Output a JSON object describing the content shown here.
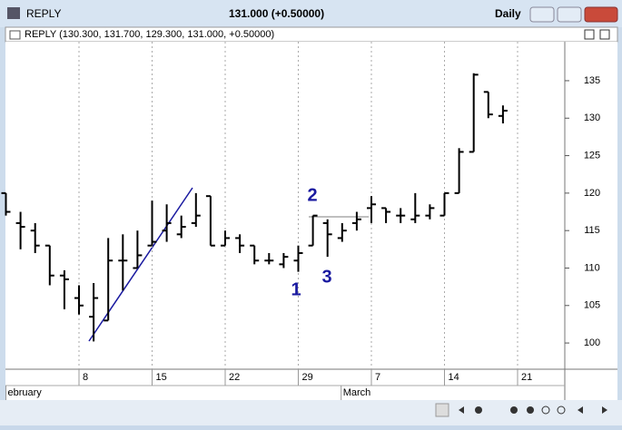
{
  "window": {
    "title": "REPLY",
    "quote": "131.000 (+0.50000)",
    "period": "Daily",
    "subtitle": "REPLY (130.300, 131.700, 129.300, 131.000, +0.50000)"
  },
  "chart_data": {
    "type": "ohlc",
    "categories": [
      null,
      null,
      null,
      null,
      null,
      "8",
      null,
      null,
      null,
      null,
      "15",
      null,
      null,
      null,
      null,
      "22",
      null,
      null,
      null,
      null,
      "29",
      null,
      null,
      null,
      null,
      "7",
      null,
      null,
      null,
      null,
      "14",
      null,
      null,
      null,
      null,
      "21"
    ],
    "months": [
      {
        "index": 0,
        "label": "ebruary"
      },
      {
        "index": 22,
        "label": "March"
      }
    ],
    "open": [
      120,
      116,
      115,
      113,
      109,
      106,
      103.5,
      103,
      111,
      110,
      113,
      115,
      114.5,
      116,
      119.6,
      113,
      114,
      113,
      111,
      110.5,
      111,
      113,
      116,
      114,
      116,
      118,
      118,
      117,
      116.5,
      117,
      117,
      120,
      125.5,
      133.5,
      130.3,
      null
    ],
    "high": [
      120,
      117.5,
      116,
      113,
      109.7,
      107.7,
      108,
      114,
      114.5,
      115,
      119,
      118.5,
      117,
      120,
      119.6,
      115,
      114.5,
      113,
      112,
      112,
      113,
      117,
      116.5,
      116,
      117.5,
      119.6,
      118,
      118,
      120,
      118.5,
      120,
      126,
      136,
      133.5,
      131.7,
      null
    ],
    "low": [
      117,
      112.5,
      112,
      107.7,
      104.5,
      103.8,
      100.2,
      103,
      107,
      110,
      113,
      113.5,
      114,
      115.5,
      113,
      113,
      112,
      110.5,
      110.5,
      110,
      109.5,
      113,
      111.5,
      113.5,
      115,
      116,
      116,
      116,
      116,
      116.5,
      117,
      120,
      125.5,
      130,
      129.3,
      null
    ],
    "close": [
      117.5,
      115.5,
      113,
      109,
      108.5,
      105,
      106,
      111,
      111,
      111.7,
      113.5,
      116,
      115.5,
      117,
      113,
      114,
      113,
      111,
      111,
      111.5,
      112,
      117,
      114.5,
      115,
      116.5,
      118.5,
      117.5,
      117,
      117,
      118,
      120,
      125.5,
      135.8,
      130.5,
      131,
      null
    ],
    "color": "#000000",
    "ylim": [
      96.5,
      140.2
    ],
    "yticks": [
      100,
      105,
      110,
      115,
      120,
      125,
      130,
      135
    ],
    "annotations": [
      "1",
      "2",
      "3"
    ],
    "annotation_color": "#1a1aa0"
  }
}
